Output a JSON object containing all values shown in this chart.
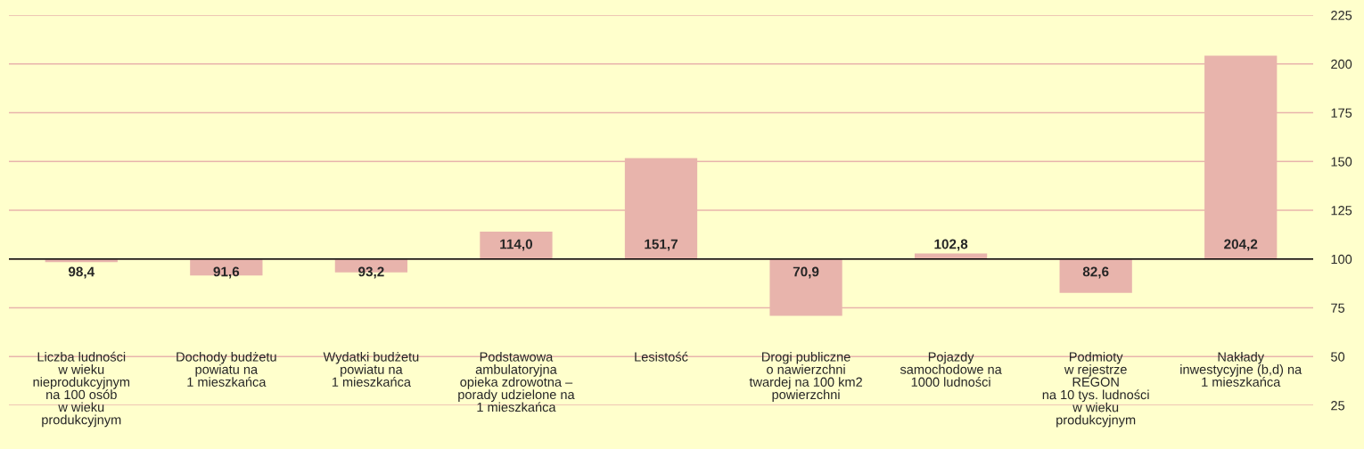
{
  "chart_data": {
    "type": "bar",
    "categories": [
      "Liczba ludności\nw wieku\nnieprodukcyjnym\nna 100 osób\nw wieku\nprodukcyjnym",
      "Dochody budżetu\npowiatu na\n1 mieszkańca",
      "Wydatki budżetu\npowiatu na\n1 mieszkańca",
      "Podstawowa\nambulatoryjna\nopieka zdrowotna –\nporady udzielone na\n1 mieszkańca",
      "Lesistość",
      "Drogi publiczne\no nawierzchni\ntwardej na 100 km2\npowierzchni",
      "Pojazdy\nsamochodowe na\n1000 ludności",
      "Podmioty\nw rejestrze\nREGON\nna 10 tys. ludności\nw wieku\nprodukcyjnym",
      "Nakłady\ninwestycyjne (b,d) na\n1 mieszkańca"
    ],
    "base": [
      100,
      100,
      100,
      100,
      100,
      100,
      100,
      100,
      100
    ],
    "values": [
      -1.6,
      -8.4,
      -6.8,
      14.0,
      51.7,
      -29.1,
      2.8,
      -17.4,
      104.2
    ],
    "value_labels": [
      "98,4",
      "91,6",
      "93,2",
      "114,0",
      "151,7",
      "70,9",
      "102,8",
      "82,6",
      "204,2"
    ],
    "color": "#e8b4ac",
    "ylim": [
      25,
      225
    ],
    "ref_lines": [
      {
        "axis": "y",
        "value": 100,
        "color": "#000000"
      }
    ],
    "yticks": [
      25,
      50,
      75,
      100,
      125,
      150,
      175,
      200,
      225
    ],
    "grid": "y"
  }
}
